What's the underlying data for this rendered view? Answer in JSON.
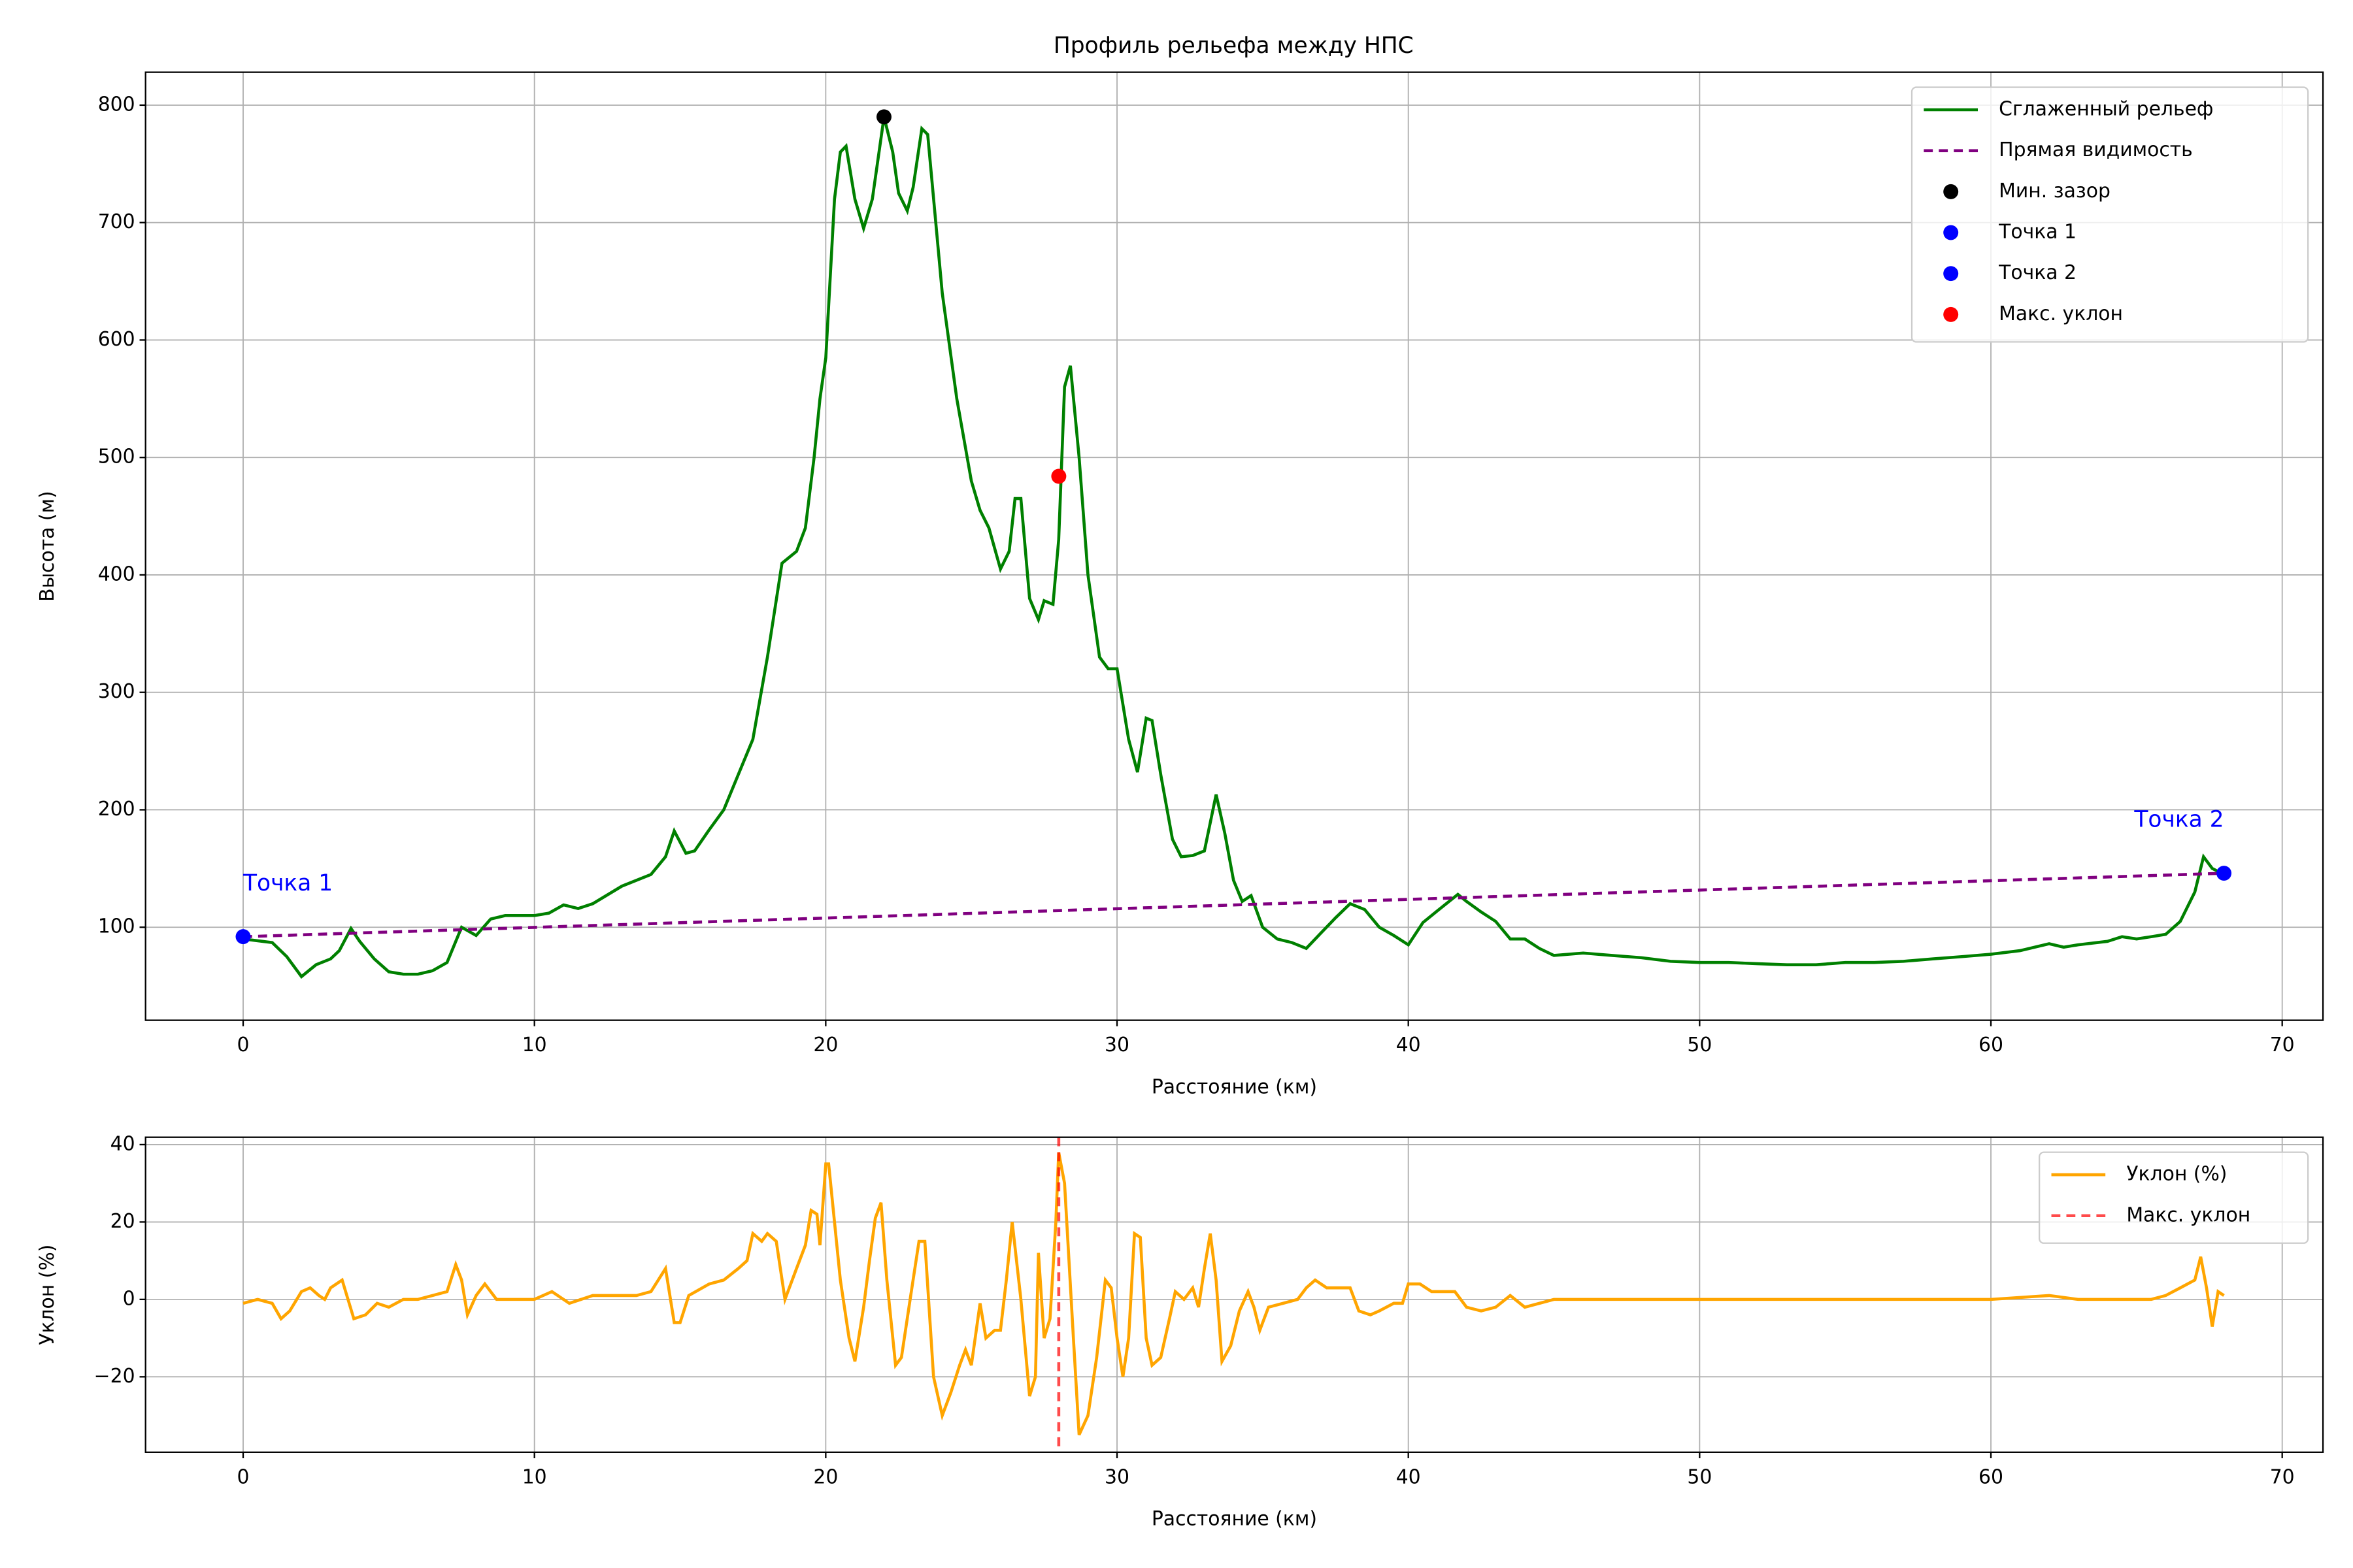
{
  "chart_data": [
    {
      "type": "line",
      "title": "Профиль рельефа между НПС",
      "xlabel": "Расстояние (км)",
      "ylabel": "Высота (м)",
      "xlim": [
        -3.35,
        71.4
      ],
      "ylim": [
        20.8,
        828
      ],
      "xticks": [
        0,
        10,
        20,
        30,
        40,
        50,
        60,
        70
      ],
      "yticks": [
        100,
        200,
        300,
        400,
        500,
        600,
        700,
        800
      ],
      "grid": true,
      "legend": "upper right",
      "series": [
        {
          "name": "Сглаженный рельеф",
          "color": "#008000",
          "style": "line",
          "x": [
            0,
            1,
            1.5,
            2,
            2.5,
            3,
            3.3,
            3.7,
            4,
            4.5,
            5,
            5.5,
            6,
            6.5,
            7,
            7.5,
            8,
            8.5,
            9,
            10,
            10.5,
            11,
            11.5,
            12,
            13,
            14,
            14.5,
            14.8,
            15.2,
            15.5,
            16,
            16.5,
            17,
            17.5,
            18,
            18.5,
            19,
            19.3,
            19.6,
            19.8,
            20,
            20.3,
            20.5,
            20.7,
            21,
            21.3,
            21.6,
            22,
            22.3,
            22.5,
            22.8,
            23,
            23.3,
            23.5,
            24,
            24.5,
            25,
            25.3,
            25.6,
            26,
            26.3,
            26.5,
            26.7,
            27,
            27.3,
            27.5,
            27.8,
            28,
            28.2,
            28.4,
            28.7,
            29,
            29.4,
            29.7,
            30,
            30.4,
            30.7,
            31,
            31.2,
            31.5,
            31.9,
            32.2,
            32.6,
            33,
            33.4,
            33.7,
            34,
            34.3,
            34.6,
            35,
            35.5,
            36,
            36.5,
            37,
            37.5,
            38,
            38.5,
            39,
            39.5,
            40,
            40.5,
            41,
            41.7,
            42,
            42.5,
            43,
            43.5,
            44,
            44.5,
            45,
            46,
            47,
            48,
            49,
            50,
            51,
            52,
            53,
            54,
            55,
            56,
            57,
            58,
            59,
            60,
            61,
            62,
            62.5,
            63,
            64,
            64.5,
            65,
            65.5,
            66,
            66.5,
            67,
            67.3,
            67.6,
            68
          ],
          "values": [
            90,
            87,
            75,
            58,
            68,
            73,
            80,
            99,
            88,
            73,
            62,
            60,
            60,
            63,
            70,
            100,
            93,
            107,
            110,
            110,
            112,
            119,
            116,
            120,
            135,
            145,
            160,
            182,
            163,
            165,
            183,
            200,
            230,
            260,
            330,
            410,
            420,
            440,
            500,
            550,
            585,
            720,
            760,
            765,
            720,
            695,
            720,
            790,
            760,
            725,
            710,
            730,
            780,
            775,
            640,
            550,
            480,
            455,
            440,
            405,
            420,
            465,
            465,
            380,
            362,
            378,
            375,
            430,
            560,
            578,
            500,
            400,
            330,
            320,
            320,
            260,
            232,
            278,
            276,
            230,
            175,
            160,
            161,
            165,
            213,
            180,
            140,
            122,
            127,
            100,
            90,
            87,
            82,
            95,
            108,
            120,
            115,
            100,
            93,
            85,
            104,
            114,
            128,
            122,
            113,
            105,
            90,
            90,
            82,
            76,
            78,
            76,
            74,
            71,
            70,
            70,
            69,
            68,
            68,
            70,
            70,
            71,
            73,
            75,
            77,
            80,
            86,
            83,
            85,
            88,
            92,
            90,
            92,
            94,
            105,
            130,
            160,
            150,
            145
          ]
        },
        {
          "name": "Прямая видимость",
          "color": "#800080",
          "style": "dashed",
          "x": [
            0,
            68
          ],
          "values": [
            92,
            146
          ]
        },
        {
          "name": "Мин. зазор",
          "color": "#000000",
          "style": "point",
          "x": [
            22
          ],
          "values": [
            790
          ]
        },
        {
          "name": "Точка 1",
          "color": "#0000ff",
          "style": "point",
          "x": [
            0
          ],
          "values": [
            92
          ]
        },
        {
          "name": "Точка 2",
          "color": "#0000ff",
          "style": "point",
          "x": [
            68
          ],
          "values": [
            146
          ]
        },
        {
          "name": "Макс. уклон",
          "color": "#ff0000",
          "style": "point",
          "x": [
            28
          ],
          "values": [
            484
          ]
        }
      ],
      "annotations": [
        {
          "text": "Точка 1",
          "color": "#0000ff"
        },
        {
          "text": "Точка 2",
          "color": "#0000ff"
        }
      ]
    },
    {
      "type": "line",
      "xlabel": "Расстояние (км)",
      "ylabel": "Уклон (%)",
      "xlim": [
        -3.35,
        71.4
      ],
      "ylim": [
        -39.5,
        41.9
      ],
      "xticks": [
        0,
        10,
        20,
        30,
        40,
        50,
        60,
        70
      ],
      "yticks": [
        {
          "value": -20,
          "label": "−20"
        },
        0,
        20,
        40
      ],
      "grid": true,
      "legend": "upper right",
      "series": [
        {
          "name": "Уклон (%)",
          "color": "#ffa500",
          "style": "line",
          "x": [
            0,
            0.5,
            1,
            1.3,
            1.6,
            2,
            2.3,
            2.6,
            2.8,
            3,
            3.4,
            3.8,
            4.2,
            4.6,
            5,
            5.5,
            6,
            6.5,
            7,
            7.3,
            7.5,
            7.7,
            8,
            8.3,
            8.7,
            9,
            9.5,
            10,
            10.6,
            11.2,
            12,
            13,
            13.5,
            14,
            14.5,
            14.8,
            15,
            15.3,
            16,
            16.5,
            17,
            17.3,
            17.5,
            17.8,
            18,
            18.3,
            18.6,
            19,
            19.3,
            19.5,
            19.7,
            19.8,
            20,
            20.1,
            20.5,
            20.8,
            21,
            21.3,
            21.5,
            21.7,
            21.9,
            22.1,
            22.4,
            22.6,
            22.9,
            23.2,
            23.4,
            23.7,
            24,
            24.3,
            24.6,
            24.8,
            25,
            25.3,
            25.5,
            25.8,
            26,
            26.2,
            26.4,
            26.7,
            27,
            27.2,
            27.3,
            27.5,
            27.7,
            27.9,
            28,
            28.2,
            28.5,
            28.7,
            29,
            29.3,
            29.6,
            29.8,
            30,
            30.2,
            30.4,
            30.6,
            30.8,
            31,
            31.2,
            31.5,
            31.8,
            32,
            32.3,
            32.6,
            32.8,
            33,
            33.2,
            33.4,
            33.6,
            33.9,
            34.2,
            34.5,
            34.7,
            34.9,
            35.2,
            35.7,
            36.2,
            36.5,
            36.8,
            37.2,
            37.6,
            38,
            38.3,
            38.7,
            39,
            39.5,
            39.8,
            40,
            40.4,
            40.8,
            41.2,
            41.6,
            42,
            42.5,
            43,
            43.5,
            44,
            44.5,
            45,
            46,
            47,
            48,
            50,
            52,
            54,
            56,
            58,
            60,
            62,
            63,
            64,
            65,
            65.5,
            66,
            66.5,
            67,
            67.2,
            67.4,
            67.6,
            67.8,
            68
          ],
          "values": [
            -1,
            0,
            -1,
            -5,
            -3,
            2,
            3,
            1,
            0,
            3,
            5,
            -5,
            -4,
            -1,
            -2,
            0,
            0,
            1,
            2,
            9,
            5,
            -4,
            1,
            4,
            0,
            0,
            0,
            0,
            2,
            -1,
            1,
            1,
            1,
            2,
            8,
            -6,
            -6,
            1,
            4,
            5,
            8,
            10,
            17,
            15,
            17,
            15,
            0,
            8,
            14,
            23,
            22,
            14,
            35,
            35,
            5,
            -10,
            -16,
            -2,
            10,
            21,
            25,
            5,
            -17,
            -15,
            0,
            15,
            15,
            -20,
            -30,
            -24,
            -17,
            -13,
            -17,
            -1,
            -10,
            -8,
            -8,
            5,
            20,
            0,
            -25,
            -20,
            12,
            -10,
            -5,
            20,
            38,
            30,
            -10,
            -35,
            -30,
            -15,
            5,
            3,
            -10,
            -20,
            -10,
            17,
            16,
            -10,
            -17,
            -15,
            -5,
            2,
            0,
            3,
            -2,
            8,
            17,
            5,
            -16,
            -12,
            -3,
            2,
            -2,
            -8,
            -2,
            -1,
            0,
            3,
            5,
            3,
            3,
            3,
            -3,
            -4,
            -3,
            -1,
            -1,
            4,
            4,
            2,
            2,
            2,
            -2,
            -3,
            -2,
            1,
            -2,
            -1,
            0,
            0,
            0,
            0,
            0,
            0,
            0,
            0,
            0,
            0,
            1,
            0,
            0,
            0,
            0,
            1,
            3,
            5,
            11,
            3,
            -7,
            2,
            1
          ]
        }
      ],
      "vlines": [
        {
          "name": "Макс. уклон",
          "color": "#ff0000",
          "x": 28
        }
      ]
    }
  ]
}
